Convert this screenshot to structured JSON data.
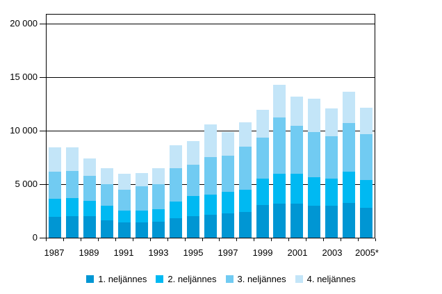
{
  "chart_data": {
    "type": "bar",
    "stacked": true,
    "title": "",
    "xlabel": "",
    "ylabel": "",
    "categories": [
      "1987",
      "1988",
      "1989",
      "1990",
      "1991",
      "1992",
      "1993",
      "1994",
      "1995",
      "1996",
      "1997",
      "1998",
      "1999",
      "2000",
      "2001",
      "2002",
      "2003",
      "2004",
      "2005*"
    ],
    "series": [
      {
        "name": "1. neljännes",
        "color": "#0096d3",
        "values": [
          1950,
          2000,
          2000,
          1650,
          1400,
          1450,
          1500,
          1850,
          2000,
          2150,
          2300,
          2400,
          3050,
          3200,
          3150,
          3000,
          3000,
          3250,
          2800
        ]
      },
      {
        "name": "2. neljännes",
        "color": "#00b9f2",
        "values": [
          1700,
          1700,
          1450,
          1350,
          1150,
          1100,
          1150,
          1500,
          1900,
          1900,
          2000,
          2050,
          2500,
          2800,
          2800,
          2650,
          2500,
          2950,
          2600
        ]
      },
      {
        "name": "3. neljännes",
        "color": "#71cbf2",
        "values": [
          2500,
          2550,
          2300,
          2000,
          1950,
          2250,
          2350,
          3150,
          2900,
          3450,
          3350,
          4050,
          3800,
          5250,
          4500,
          4200,
          4000,
          4500,
          4300
        ]
      },
      {
        "name": "4. neljännes",
        "color": "#c3e5f8",
        "values": [
          2300,
          2200,
          1650,
          1500,
          1500,
          1250,
          1500,
          2150,
          2200,
          3100,
          2200,
          2300,
          2600,
          3050,
          2700,
          3150,
          2600,
          2950,
          2450
        ]
      }
    ],
    "ylim": [
      0,
      21000
    ],
    "y_ticks": [
      0,
      5000,
      10000,
      15000,
      20000
    ],
    "y_tick_labels": [
      "0",
      "5 000",
      "10 000",
      "15 000",
      "20 000"
    ],
    "x_label_every": 2,
    "grid": true,
    "legend_position": "bottom"
  }
}
